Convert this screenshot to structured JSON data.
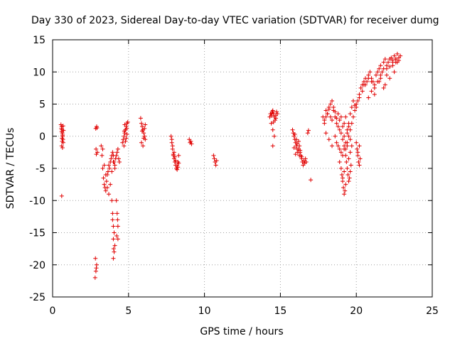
{
  "chart_data": {
    "type": "scatter",
    "title": "Day 330 of 2023, Sidereal Day-to-day VTEC variation (SDTVAR) for receiver dumg",
    "xlabel": "GPS time / hours",
    "ylabel": "SDTVAR / TECUs",
    "xlim": [
      0,
      25
    ],
    "ylim": [
      -25,
      15
    ],
    "xticks": [
      0,
      5,
      10,
      15,
      20,
      25
    ],
    "yticks": [
      -25,
      -20,
      -15,
      -10,
      -5,
      0,
      5,
      10,
      15
    ],
    "grid": true,
    "marker": "+",
    "color": "#e00000",
    "series": [
      {
        "name": "SDTVAR",
        "x": [
          0.6,
          0.62,
          0.64,
          0.66,
          0.68,
          0.7,
          0.55,
          0.58,
          0.6,
          0.63,
          0.66,
          0.69,
          0.72,
          0.62,
          0.65,
          0.6,
          2.8,
          2.85,
          2.9,
          2.82,
          2.88,
          2.95,
          2.86,
          2.9,
          2.84,
          2.88,
          2.92,
          3.2,
          3.25,
          3.3,
          3.35,
          3.4,
          3.45,
          3.5,
          3.55,
          3.6,
          3.65,
          3.7,
          3.75,
          3.8,
          3.85,
          3.9,
          3.95,
          4.0,
          4.05,
          4.1,
          4.15,
          4.2,
          4.25,
          4.3,
          4.35,
          4.4,
          3.3,
          3.4,
          3.5,
          3.6,
          3.7,
          3.8,
          3.9,
          4.0,
          4.1,
          3.9,
          3.95,
          4.0,
          4.05,
          4.1,
          3.95,
          4.0,
          4.05,
          4.0,
          4.02,
          4.2,
          4.25,
          4.3,
          4.22,
          4.28,
          4.3,
          4.6,
          4.65,
          4.7,
          4.75,
          4.8,
          4.85,
          4.9,
          4.95,
          4.7,
          4.8,
          4.9,
          4.75,
          4.85,
          4.72,
          4.88,
          5.8,
          5.85,
          5.9,
          5.95,
          6.0,
          6.05,
          6.1,
          5.85,
          5.95,
          6.05,
          5.9,
          6.0,
          6.1,
          7.8,
          7.85,
          7.9,
          7.95,
          8.0,
          8.05,
          8.1,
          8.15,
          8.2,
          8.25,
          8.3,
          7.9,
          8.0,
          8.1,
          8.2,
          8.3,
          7.85,
          7.95,
          8.05,
          8.15,
          8.25,
          9.0,
          9.05,
          9.1,
          9.15,
          10.6,
          10.65,
          10.7,
          10.75,
          10.8,
          14.3,
          14.35,
          14.4,
          14.45,
          14.5,
          14.55,
          14.6,
          14.65,
          14.7,
          14.75,
          14.8,
          14.4,
          14.5,
          14.6,
          14.7,
          14.45,
          14.55,
          14.5,
          14.5,
          15.8,
          15.85,
          15.9,
          15.95,
          16.0,
          16.05,
          16.1,
          16.15,
          16.2,
          16.25,
          16.3,
          16.35,
          16.4,
          16.45,
          16.5,
          16.55,
          16.6,
          16.65,
          16.7,
          15.9,
          16.0,
          16.1,
          16.2,
          16.3,
          16.4,
          15.95,
          16.05,
          16.15,
          16.25,
          16.8,
          16.85,
          17.0,
          0.6,
          17.8,
          17.9,
          18.0,
          18.1,
          18.2,
          18.3,
          18.4,
          18.5,
          18.6,
          18.7,
          18.8,
          18.9,
          19.0,
          19.1,
          19.2,
          19.3,
          19.4,
          19.5,
          19.6,
          19.7,
          19.8,
          19.9,
          20.0,
          20.1,
          20.2,
          20.3,
          20.4,
          20.5,
          20.6,
          20.7,
          20.8,
          20.9,
          21.0,
          21.1,
          21.2,
          21.3,
          21.4,
          21.5,
          21.6,
          21.7,
          21.8,
          21.9,
          22.0,
          22.1,
          22.2,
          22.3,
          22.4,
          22.5,
          22.6,
          22.7,
          22.8,
          17.9,
          18.0,
          18.1,
          18.2,
          18.3,
          18.4,
          18.5,
          18.6,
          18.7,
          18.8,
          18.9,
          19.0,
          19.1,
          19.2,
          19.3,
          19.4,
          19.5,
          19.6,
          19.7,
          19.8,
          19.9,
          20.0,
          20.2,
          20.4,
          20.6,
          20.8,
          21.0,
          21.2,
          21.4,
          21.6,
          21.8,
          22.0,
          22.2,
          22.4,
          22.6,
          22.8,
          18.6,
          18.7,
          18.8,
          18.9,
          19.0,
          19.1,
          19.2,
          19.3,
          19.4,
          19.5,
          19.6,
          19.7,
          18.9,
          19.0,
          19.05,
          19.1,
          19.15,
          19.2,
          19.25,
          19.3,
          19.1,
          19.2,
          19.3,
          19.35,
          19.4,
          19.45,
          19.5,
          19.55,
          19.6,
          19.65,
          19.5,
          19.6,
          20.0,
          20.05,
          20.1,
          20.15,
          20.2,
          20.25,
          20.1,
          20.2,
          18.4,
          18.2,
          18.0,
          19.2,
          19.4,
          20.5,
          21.0,
          21.5,
          21.8,
          22.2,
          22.5,
          22.7,
          21.2,
          20.8,
          21.6,
          22.0,
          22.4,
          22.9,
          21.9,
          22.6
        ],
        "y": [
          1.5,
          1.0,
          0.5,
          0.0,
          -0.5,
          -1.0,
          1.8,
          1.2,
          -1.5,
          -0.8,
          0.2,
          1.6,
          0.9,
          -0.3,
          -1.8,
          0.7,
          -22.0,
          -21.0,
          -20.0,
          -19.0,
          -20.5,
          -2.5,
          -2.0,
          1.5,
          1.2,
          -2.8,
          1.3,
          -1.5,
          -3.0,
          -5.0,
          -6.5,
          -7.5,
          -8.0,
          -8.5,
          -7.0,
          -6.0,
          -5.5,
          -4.5,
          -5.0,
          -4.0,
          -3.5,
          -3.0,
          -2.5,
          -3.0,
          -4.0,
          -4.5,
          -3.5,
          -3.0,
          -2.5,
          -2.0,
          -3.5,
          -4.0,
          -2.0,
          -4.5,
          -6.0,
          -8.0,
          -9.0,
          -7.5,
          -5.5,
          -4.0,
          -5.0,
          -10.0,
          -12.0,
          -14.0,
          -15.0,
          -17.0,
          -13.0,
          -16.0,
          -18.0,
          -19.0,
          -17.5,
          -10.0,
          -12.0,
          -14.0,
          -15.5,
          -13.0,
          -16.0,
          -1.0,
          -0.5,
          0.0,
          0.5,
          1.0,
          1.5,
          2.0,
          2.2,
          -1.5,
          -0.8,
          0.3,
          1.8,
          -0.3,
          0.8,
          1.2,
          2.8,
          2.0,
          1.5,
          1.0,
          0.5,
          0.0,
          -0.5,
          -1.0,
          -1.5,
          1.2,
          0.8,
          -0.3,
          1.8,
          0.0,
          -1.0,
          -2.0,
          -3.0,
          -3.5,
          -4.0,
          -4.5,
          -5.0,
          -5.2,
          -4.8,
          -4.2,
          -1.5,
          -2.5,
          -3.8,
          -4.5,
          -3.0,
          -0.5,
          -2.8,
          -3.2,
          -5.0,
          -4.0,
          -0.5,
          -1.0,
          -0.8,
          -1.2,
          -3.0,
          -3.5,
          -4.0,
          -4.5,
          -3.8,
          3.0,
          3.5,
          3.2,
          3.8,
          4.0,
          3.5,
          3.0,
          2.5,
          3.2,
          3.8,
          3.5,
          2.0,
          1.0,
          0.0,
          2.8,
          3.6,
          2.2,
          -1.5,
          3.8,
          1.0,
          0.5,
          0.0,
          -0.5,
          -1.0,
          -1.5,
          -2.0,
          -2.5,
          -2.0,
          -1.5,
          -2.5,
          -3.0,
          -3.5,
          -4.0,
          -4.5,
          -3.8,
          -4.2,
          -3.5,
          -4.0,
          -1.8,
          -2.8,
          -1.2,
          -0.8,
          -2.2,
          -3.2,
          0.3,
          -0.5,
          -2.5,
          -3.0,
          0.5,
          0.9,
          -6.8,
          -9.3,
          3.0,
          2.5,
          4.0,
          3.5,
          4.5,
          5.0,
          5.5,
          4.0,
          3.0,
          2.0,
          3.5,
          2.5,
          3.0,
          1.5,
          2.0,
          3.0,
          1.0,
          2.0,
          3.5,
          4.5,
          5.5,
          4.8,
          5.0,
          5.5,
          6.5,
          7.5,
          8.0,
          8.5,
          9.0,
          8.5,
          9.5,
          10.0,
          9.0,
          8.5,
          8.0,
          9.5,
          10.0,
          10.5,
          11.0,
          10.0,
          11.5,
          12.0,
          11.0,
          11.5,
          12.0,
          12.2,
          11.8,
          12.5,
          12.0,
          12.8,
          12.2,
          2.0,
          3.0,
          3.5,
          4.2,
          3.0,
          2.5,
          4.5,
          3.8,
          2.8,
          1.5,
          1.0,
          0.5,
          -0.5,
          -1.5,
          -2.0,
          -1.0,
          0.0,
          1.0,
          2.0,
          3.0,
          4.0,
          4.5,
          6.0,
          7.0,
          8.0,
          9.0,
          8.5,
          7.5,
          8.5,
          9.0,
          10.5,
          9.5,
          10.8,
          11.5,
          12.0,
          11.8,
          0.0,
          -1.0,
          -1.5,
          -2.0,
          -2.5,
          -3.0,
          -2.0,
          -1.0,
          0.5,
          1.5,
          -0.5,
          -1.5,
          -4.0,
          -5.0,
          -6.0,
          -7.0,
          -8.0,
          -9.0,
          -8.5,
          -7.5,
          -6.5,
          -5.5,
          -3.0,
          -4.0,
          -5.0,
          -6.0,
          -7.0,
          -6.5,
          -5.5,
          -4.5,
          -3.5,
          -2.5,
          -1.0,
          -2.0,
          -3.0,
          -4.0,
          -4.5,
          -3.5,
          -2.5,
          -1.5,
          -1.5,
          -0.5,
          0.5,
          0.0,
          -1.5,
          8.0,
          7.0,
          8.5,
          7.5,
          9.0,
          10.0,
          11.5,
          6.5,
          6.0,
          9.5,
          10.5,
          11.0,
          12.5,
          8.0,
          11.5
        ]
      }
    ]
  }
}
